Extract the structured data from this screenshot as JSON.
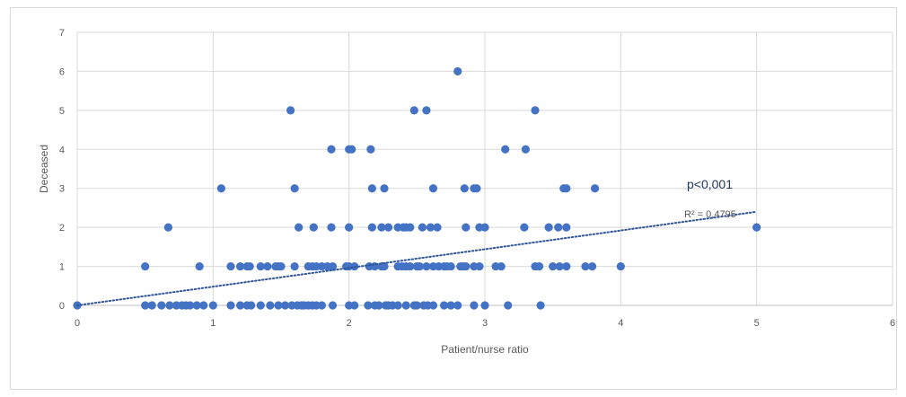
{
  "chart_data": {
    "type": "scatter",
    "xlabel": "Patient/nurse ratio",
    "ylabel": "Deceased",
    "xlim": [
      0,
      6
    ],
    "ylim": [
      0,
      7
    ],
    "x_ticks": [
      "0",
      "1",
      "2",
      "3",
      "4",
      "5",
      "6"
    ],
    "y_ticks": [
      "0",
      "1",
      "2",
      "3",
      "4",
      "5",
      "6",
      "7"
    ],
    "grid": true,
    "legend": "none",
    "marker_color": "#4472c4",
    "trendline": {
      "type": "linear",
      "color": "#2e5597",
      "style": "dotted",
      "x_range": [
        0,
        5
      ],
      "y_start": 0.0,
      "y_end": 2.4
    },
    "annotations": {
      "p_value": "p<0,001",
      "r_squared": "R² = 0,4795"
    },
    "points": [
      [
        0,
        0
      ],
      [
        0.5,
        0
      ],
      [
        0.55,
        0
      ],
      [
        0.62,
        0
      ],
      [
        0.68,
        0
      ],
      [
        0.73,
        0
      ],
      [
        0.77,
        0
      ],
      [
        0.8,
        0
      ],
      [
        0.83,
        0
      ],
      [
        0.88,
        0
      ],
      [
        0.93,
        0
      ],
      [
        1,
        0
      ],
      [
        1.13,
        0
      ],
      [
        1.2,
        0
      ],
      [
        1.25,
        0
      ],
      [
        1.28,
        0
      ],
      [
        1.35,
        0
      ],
      [
        1.42,
        0
      ],
      [
        1.48,
        0
      ],
      [
        1.53,
        0
      ],
      [
        1.58,
        0
      ],
      [
        1.62,
        0
      ],
      [
        1.65,
        0
      ],
      [
        1.67,
        0
      ],
      [
        1.7,
        0
      ],
      [
        1.73,
        0
      ],
      [
        1.76,
        0
      ],
      [
        1.8,
        0
      ],
      [
        1.88,
        0
      ],
      [
        2,
        0
      ],
      [
        2.04,
        0
      ],
      [
        2.14,
        0
      ],
      [
        2.19,
        0
      ],
      [
        2.22,
        0
      ],
      [
        2.27,
        0
      ],
      [
        2.29,
        0
      ],
      [
        2.32,
        0
      ],
      [
        2.36,
        0
      ],
      [
        2.42,
        0
      ],
      [
        2.48,
        0
      ],
      [
        2.5,
        0
      ],
      [
        2.55,
        0
      ],
      [
        2.58,
        0
      ],
      [
        2.62,
        0
      ],
      [
        2.7,
        0
      ],
      [
        2.75,
        0
      ],
      [
        2.8,
        0
      ],
      [
        2.92,
        0
      ],
      [
        3,
        0
      ],
      [
        3.17,
        0
      ],
      [
        3.41,
        0
      ],
      [
        0.5,
        1
      ],
      [
        0.9,
        1
      ],
      [
        1.13,
        1
      ],
      [
        1.2,
        1
      ],
      [
        1.25,
        1
      ],
      [
        1.27,
        1
      ],
      [
        1.35,
        1
      ],
      [
        1.4,
        1
      ],
      [
        1.46,
        1
      ],
      [
        1.48,
        1
      ],
      [
        1.5,
        1
      ],
      [
        1.6,
        1
      ],
      [
        1.7,
        1
      ],
      [
        1.73,
        1
      ],
      [
        1.76,
        1
      ],
      [
        1.8,
        1
      ],
      [
        1.84,
        1
      ],
      [
        1.88,
        1
      ],
      [
        1.98,
        1
      ],
      [
        2,
        1
      ],
      [
        2.04,
        1
      ],
      [
        2.15,
        1
      ],
      [
        2.19,
        1
      ],
      [
        2.24,
        1
      ],
      [
        2.26,
        1
      ],
      [
        2.36,
        1
      ],
      [
        2.39,
        1
      ],
      [
        2.42,
        1
      ],
      [
        2.45,
        1
      ],
      [
        2.5,
        1
      ],
      [
        2.52,
        1
      ],
      [
        2.57,
        1
      ],
      [
        2.62,
        1
      ],
      [
        2.66,
        1
      ],
      [
        2.7,
        1
      ],
      [
        2.72,
        1
      ],
      [
        2.75,
        1
      ],
      [
        2.82,
        1
      ],
      [
        2.84,
        1
      ],
      [
        2.86,
        1
      ],
      [
        2.92,
        1
      ],
      [
        2.96,
        1
      ],
      [
        3.08,
        1
      ],
      [
        3.12,
        1
      ],
      [
        3.37,
        1
      ],
      [
        3.4,
        1
      ],
      [
        3.5,
        1
      ],
      [
        3.55,
        1
      ],
      [
        3.6,
        1
      ],
      [
        3.74,
        1
      ],
      [
        3.79,
        1
      ],
      [
        4,
        1
      ],
      [
        0.67,
        2
      ],
      [
        1.63,
        2
      ],
      [
        1.74,
        2
      ],
      [
        1.87,
        2
      ],
      [
        2,
        2
      ],
      [
        2.17,
        2
      ],
      [
        2.24,
        2
      ],
      [
        2.29,
        2
      ],
      [
        2.36,
        2
      ],
      [
        2.4,
        2
      ],
      [
        2.42,
        2
      ],
      [
        2.45,
        2
      ],
      [
        2.54,
        2
      ],
      [
        2.6,
        2
      ],
      [
        2.65,
        2
      ],
      [
        2.86,
        2
      ],
      [
        2.96,
        2
      ],
      [
        3,
        2
      ],
      [
        3.29,
        2
      ],
      [
        3.47,
        2
      ],
      [
        3.54,
        2
      ],
      [
        3.6,
        2
      ],
      [
        5,
        2
      ],
      [
        1.06,
        3
      ],
      [
        1.6,
        3
      ],
      [
        2.17,
        3
      ],
      [
        2.26,
        3
      ],
      [
        2.62,
        3
      ],
      [
        2.85,
        3
      ],
      [
        2.92,
        3
      ],
      [
        2.94,
        3
      ],
      [
        3.58,
        3
      ],
      [
        3.6,
        3
      ],
      [
        3.81,
        3
      ],
      [
        1.87,
        4
      ],
      [
        2,
        4
      ],
      [
        2.02,
        4
      ],
      [
        2.16,
        4
      ],
      [
        3.15,
        4
      ],
      [
        3.3,
        4
      ],
      [
        1.57,
        5
      ],
      [
        2.48,
        5
      ],
      [
        2.57,
        5
      ],
      [
        3.37,
        5
      ],
      [
        2.8,
        6
      ]
    ]
  }
}
